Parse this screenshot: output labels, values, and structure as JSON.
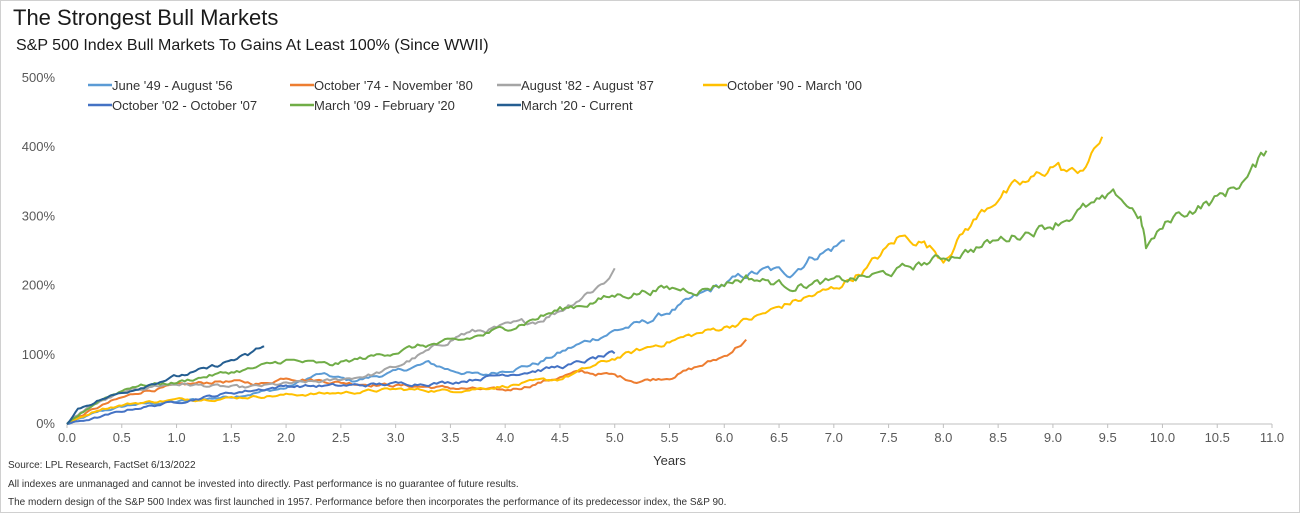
{
  "title": "The Strongest Bull Markets",
  "subtitle": "S&P 500 Index Bull Markets To Gains At Least 100% (Since WWII)",
  "notes": {
    "source": "Source: LPL Research, FactSet 6/13/2022",
    "disclaimer": "All indexes are unmanaged and cannot be invested into directly. Past performance is no guarantee of future results.",
    "design": "The modern design of the S&P 500 Index was first launched in 1957. Performance before then incorporates the performance of its predecessor index, the S&P 90."
  },
  "chart_data": {
    "type": "line",
    "xlabel": "Years",
    "ylabel": "",
    "xlim": [
      0,
      11
    ],
    "ylim": [
      0,
      500
    ],
    "x_ticks": [
      "0.0",
      "0.5",
      "1.0",
      "1.5",
      "2.0",
      "2.5",
      "3.0",
      "3.5",
      "4.0",
      "4.5",
      "5.0",
      "5.5",
      "6.0",
      "6.5",
      "7.0",
      "7.5",
      "8.0",
      "8.5",
      "9.0",
      "9.5",
      "10.0",
      "10.5",
      "11.0"
    ],
    "y_ticks": [
      "0%",
      "100%",
      "200%",
      "300%",
      "400%",
      "500%"
    ],
    "grid": false,
    "legend_position": "top-left",
    "series": [
      {
        "name": "June '49 - August '56",
        "color": "#5b9bd5",
        "points": [
          [
            0,
            0
          ],
          [
            0.3,
            18
          ],
          [
            0.6,
            28
          ],
          [
            1.0,
            32
          ],
          [
            1.5,
            40
          ],
          [
            2.0,
            52
          ],
          [
            2.3,
            72
          ],
          [
            2.6,
            62
          ],
          [
            3.0,
            75
          ],
          [
            3.3,
            88
          ],
          [
            3.5,
            78
          ],
          [
            3.8,
            70
          ],
          [
            4.0,
            78
          ],
          [
            4.3,
            88
          ],
          [
            4.6,
            110
          ],
          [
            5.0,
            135
          ],
          [
            5.3,
            148
          ],
          [
            5.6,
            170
          ],
          [
            5.9,
            195
          ],
          [
            6.2,
            215
          ],
          [
            6.4,
            222
          ],
          [
            6.6,
            218
          ],
          [
            6.8,
            242
          ],
          [
            7.0,
            255
          ],
          [
            7.1,
            265
          ]
        ]
      },
      {
        "name": "October '74 - November '80",
        "color": "#ed7d31",
        "points": [
          [
            0,
            0
          ],
          [
            0.2,
            18
          ],
          [
            0.4,
            32
          ],
          [
            0.7,
            48
          ],
          [
            1.0,
            55
          ],
          [
            1.4,
            62
          ],
          [
            1.8,
            58
          ],
          [
            2.0,
            68
          ],
          [
            2.5,
            60
          ],
          [
            3.0,
            56
          ],
          [
            3.5,
            52
          ],
          [
            4.0,
            48
          ],
          [
            4.2,
            55
          ],
          [
            4.5,
            68
          ],
          [
            4.7,
            75
          ],
          [
            5.0,
            70
          ],
          [
            5.2,
            62
          ],
          [
            5.5,
            68
          ],
          [
            5.8,
            85
          ],
          [
            6.0,
            98
          ],
          [
            6.2,
            122
          ]
        ]
      },
      {
        "name": "August '82 - August '87",
        "color": "#a5a5a5",
        "points": [
          [
            0,
            0
          ],
          [
            0.2,
            25
          ],
          [
            0.5,
            45
          ],
          [
            0.8,
            55
          ],
          [
            1.0,
            58
          ],
          [
            1.3,
            55
          ],
          [
            1.6,
            52
          ],
          [
            2.0,
            58
          ],
          [
            2.4,
            62
          ],
          [
            2.8,
            72
          ],
          [
            3.0,
            82
          ],
          [
            3.3,
            105
          ],
          [
            3.6,
            130
          ],
          [
            3.8,
            135
          ],
          [
            4.0,
            140
          ],
          [
            4.3,
            150
          ],
          [
            4.5,
            165
          ],
          [
            4.7,
            185
          ],
          [
            4.9,
            205
          ],
          [
            5.0,
            225
          ]
        ]
      },
      {
        "name": "October '90 - March '00",
        "color": "#ffc000",
        "points": [
          [
            0,
            0
          ],
          [
            0.3,
            22
          ],
          [
            0.6,
            30
          ],
          [
            1.0,
            35
          ],
          [
            1.5,
            38
          ],
          [
            2.0,
            42
          ],
          [
            2.5,
            45
          ],
          [
            3.0,
            50
          ],
          [
            3.5,
            48
          ],
          [
            4.0,
            55
          ],
          [
            4.5,
            65
          ],
          [
            5.0,
            95
          ],
          [
            5.5,
            120
          ],
          [
            6.0,
            140
          ],
          [
            6.3,
            155
          ],
          [
            6.6,
            175
          ],
          [
            7.0,
            195
          ],
          [
            7.3,
            225
          ],
          [
            7.6,
            270
          ],
          [
            7.8,
            265
          ],
          [
            8.0,
            240
          ],
          [
            8.2,
            280
          ],
          [
            8.5,
            330
          ],
          [
            8.8,
            350
          ],
          [
            9.0,
            375
          ],
          [
            9.2,
            360
          ],
          [
            9.35,
            385
          ],
          [
            9.45,
            415
          ]
        ]
      },
      {
        "name": "October '02 - October '07",
        "color": "#4472c4",
        "points": [
          [
            0,
            0
          ],
          [
            0.3,
            10
          ],
          [
            0.6,
            22
          ],
          [
            1.0,
            32
          ],
          [
            1.5,
            45
          ],
          [
            2.0,
            55
          ],
          [
            2.5,
            55
          ],
          [
            3.0,
            58
          ],
          [
            3.5,
            60
          ],
          [
            4.0,
            72
          ],
          [
            4.3,
            78
          ],
          [
            4.6,
            85
          ],
          [
            5.0,
            102
          ]
        ]
      },
      {
        "name": "March '09 - February '20",
        "color": "#70ad47",
        "points": [
          [
            0,
            0
          ],
          [
            0.3,
            35
          ],
          [
            0.6,
            55
          ],
          [
            1.0,
            60
          ],
          [
            1.3,
            70
          ],
          [
            1.7,
            80
          ],
          [
            2.0,
            92
          ],
          [
            2.4,
            85
          ],
          [
            2.8,
            98
          ],
          [
            3.2,
            112
          ],
          [
            3.6,
            120
          ],
          [
            4.0,
            138
          ],
          [
            4.5,
            165
          ],
          [
            5.0,
            185
          ],
          [
            5.4,
            195
          ],
          [
            5.8,
            195
          ],
          [
            6.2,
            212
          ],
          [
            6.6,
            200
          ],
          [
            7.0,
            205
          ],
          [
            7.5,
            218
          ],
          [
            8.0,
            240
          ],
          [
            8.5,
            265
          ],
          [
            9.0,
            290
          ],
          [
            9.3,
            312
          ],
          [
            9.6,
            328
          ],
          [
            9.8,
            300
          ],
          [
            9.85,
            255
          ],
          [
            10.1,
            300
          ],
          [
            10.5,
            325
          ],
          [
            10.8,
            360
          ],
          [
            10.95,
            395
          ]
        ]
      },
      {
        "name": "March '20 - Current",
        "color": "#255e91",
        "points": [
          [
            0,
            0
          ],
          [
            0.1,
            22
          ],
          [
            0.3,
            35
          ],
          [
            0.5,
            45
          ],
          [
            0.7,
            55
          ],
          [
            0.9,
            65
          ],
          [
            1.1,
            72
          ],
          [
            1.3,
            80
          ],
          [
            1.5,
            92
          ],
          [
            1.65,
            98
          ],
          [
            1.75,
            108
          ],
          [
            1.8,
            112
          ]
        ]
      }
    ]
  }
}
